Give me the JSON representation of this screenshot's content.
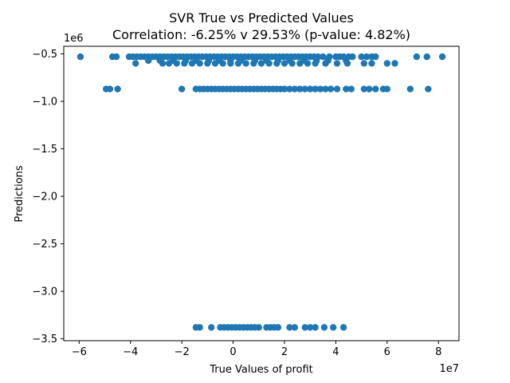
{
  "chart_data": {
    "type": "scatter",
    "title": "SVR True vs Predicted Values",
    "subtitle": "Correlation: -6.25% v 29.53% (p-value: 4.82%)",
    "xlabel": "True Values of profit",
    "ylabel": "Predictions",
    "x_offset_label": "1e7",
    "y_offset_label": "1e6",
    "x_ticks": [
      -6,
      -4,
      -2,
      0,
      2,
      4,
      6,
      8
    ],
    "y_ticks": [
      -0.5,
      -1.0,
      -1.5,
      -2.0,
      -2.5,
      -3.0,
      -3.5
    ],
    "x_tick_labels": [
      "−6",
      "−4",
      "−2",
      "0",
      "2",
      "4",
      "6",
      "8"
    ],
    "y_tick_labels": [
      "−0.5",
      "−1.0",
      "−1.5",
      "−2.0",
      "−2.5",
      "−3.0",
      "−3.5"
    ],
    "xlim": [
      -6.6,
      8.8
    ],
    "ylim": [
      -3.52,
      -0.42
    ],
    "grid": false,
    "marker_color": "#1f77b4",
    "series": [
      {
        "points": [
          [
            -5.95,
            -0.53
          ],
          [
            -4.7,
            -0.53
          ],
          [
            -4.55,
            -0.53
          ],
          [
            -4.05,
            -0.53
          ],
          [
            -3.9,
            -0.53
          ],
          [
            -3.75,
            -0.53
          ],
          [
            -3.6,
            -0.53
          ],
          [
            -3.45,
            -0.53
          ],
          [
            -3.3,
            -0.53
          ],
          [
            -3.15,
            -0.53
          ],
          [
            -3.0,
            -0.53
          ],
          [
            -2.85,
            -0.53
          ],
          [
            -2.7,
            -0.53
          ],
          [
            -2.55,
            -0.53
          ],
          [
            -2.4,
            -0.53
          ],
          [
            -2.25,
            -0.53
          ],
          [
            -2.1,
            -0.53
          ],
          [
            -1.95,
            -0.53
          ],
          [
            -1.8,
            -0.53
          ],
          [
            -1.65,
            -0.53
          ],
          [
            -1.5,
            -0.53
          ],
          [
            -1.35,
            -0.53
          ],
          [
            -1.2,
            -0.53
          ],
          [
            -1.05,
            -0.53
          ],
          [
            -0.9,
            -0.53
          ],
          [
            -0.75,
            -0.53
          ],
          [
            -0.6,
            -0.53
          ],
          [
            -0.45,
            -0.53
          ],
          [
            -0.3,
            -0.53
          ],
          [
            -0.15,
            -0.53
          ],
          [
            0.0,
            -0.53
          ],
          [
            0.15,
            -0.53
          ],
          [
            0.3,
            -0.53
          ],
          [
            0.45,
            -0.53
          ],
          [
            0.6,
            -0.53
          ],
          [
            0.75,
            -0.53
          ],
          [
            0.9,
            -0.53
          ],
          [
            1.05,
            -0.53
          ],
          [
            1.2,
            -0.53
          ],
          [
            1.35,
            -0.53
          ],
          [
            1.5,
            -0.53
          ],
          [
            1.65,
            -0.53
          ],
          [
            1.8,
            -0.53
          ],
          [
            1.95,
            -0.53
          ],
          [
            2.1,
            -0.53
          ],
          [
            2.25,
            -0.53
          ],
          [
            2.4,
            -0.53
          ],
          [
            2.55,
            -0.53
          ],
          [
            2.7,
            -0.53
          ],
          [
            2.85,
            -0.53
          ],
          [
            3.0,
            -0.53
          ],
          [
            3.15,
            -0.53
          ],
          [
            3.3,
            -0.53
          ],
          [
            3.5,
            -0.53
          ],
          [
            3.75,
            -0.53
          ],
          [
            4.0,
            -0.53
          ],
          [
            4.15,
            -0.53
          ],
          [
            4.3,
            -0.53
          ],
          [
            4.5,
            -0.53
          ],
          [
            4.65,
            -0.53
          ],
          [
            5.0,
            -0.53
          ],
          [
            5.2,
            -0.53
          ],
          [
            5.4,
            -0.53
          ],
          [
            5.55,
            -0.53
          ],
          [
            7.15,
            -0.53
          ],
          [
            7.55,
            -0.53
          ],
          [
            8.15,
            -0.53
          ],
          [
            -3.3,
            -0.57
          ],
          [
            -2.85,
            -0.57
          ],
          [
            -2.35,
            -0.57
          ],
          [
            -1.85,
            -0.57
          ],
          [
            -1.45,
            -0.57
          ],
          [
            -0.95,
            -0.57
          ],
          [
            -0.55,
            -0.57
          ],
          [
            -0.1,
            -0.57
          ],
          [
            0.3,
            -0.57
          ],
          [
            0.85,
            -0.57
          ],
          [
            1.3,
            -0.57
          ],
          [
            1.75,
            -0.57
          ],
          [
            2.2,
            -0.57
          ],
          [
            2.75,
            -0.57
          ],
          [
            3.25,
            -0.57
          ],
          [
            3.7,
            -0.57
          ],
          [
            4.4,
            -0.57
          ],
          [
            -3.8,
            -0.6
          ],
          [
            -2.75,
            -0.6
          ],
          [
            -2.5,
            -0.6
          ],
          [
            -2.2,
            -0.6
          ],
          [
            -1.9,
            -0.6
          ],
          [
            -1.6,
            -0.6
          ],
          [
            -1.3,
            -0.6
          ],
          [
            -1.0,
            -0.6
          ],
          [
            -0.7,
            -0.6
          ],
          [
            -0.4,
            -0.6
          ],
          [
            -0.1,
            -0.6
          ],
          [
            0.2,
            -0.6
          ],
          [
            0.5,
            -0.6
          ],
          [
            0.8,
            -0.6
          ],
          [
            1.1,
            -0.6
          ],
          [
            1.4,
            -0.6
          ],
          [
            1.7,
            -0.6
          ],
          [
            2.0,
            -0.6
          ],
          [
            2.3,
            -0.6
          ],
          [
            2.6,
            -0.6
          ],
          [
            2.9,
            -0.6
          ],
          [
            3.2,
            -0.6
          ],
          [
            3.6,
            -0.6
          ],
          [
            4.05,
            -0.6
          ],
          [
            4.45,
            -0.6
          ],
          [
            5.1,
            -0.6
          ],
          [
            5.4,
            -0.6
          ],
          [
            6.0,
            -0.6
          ],
          [
            6.3,
            -0.6
          ],
          [
            -4.95,
            -0.87
          ],
          [
            -4.8,
            -0.87
          ],
          [
            -4.5,
            -0.87
          ],
          [
            -2.0,
            -0.87
          ],
          [
            -1.45,
            -0.87
          ],
          [
            -1.3,
            -0.87
          ],
          [
            -1.15,
            -0.87
          ],
          [
            -1.0,
            -0.87
          ],
          [
            -0.85,
            -0.87
          ],
          [
            -0.7,
            -0.87
          ],
          [
            -0.55,
            -0.87
          ],
          [
            -0.4,
            -0.87
          ],
          [
            -0.25,
            -0.87
          ],
          [
            -0.1,
            -0.87
          ],
          [
            0.05,
            -0.87
          ],
          [
            0.2,
            -0.87
          ],
          [
            0.35,
            -0.87
          ],
          [
            0.5,
            -0.87
          ],
          [
            0.65,
            -0.87
          ],
          [
            0.8,
            -0.87
          ],
          [
            0.95,
            -0.87
          ],
          [
            1.1,
            -0.87
          ],
          [
            1.25,
            -0.87
          ],
          [
            1.4,
            -0.87
          ],
          [
            1.55,
            -0.87
          ],
          [
            1.7,
            -0.87
          ],
          [
            1.85,
            -0.87
          ],
          [
            2.0,
            -0.87
          ],
          [
            2.2,
            -0.87
          ],
          [
            2.4,
            -0.87
          ],
          [
            2.6,
            -0.87
          ],
          [
            2.8,
            -0.87
          ],
          [
            3.0,
            -0.87
          ],
          [
            3.2,
            -0.87
          ],
          [
            3.4,
            -0.87
          ],
          [
            3.6,
            -0.87
          ],
          [
            3.8,
            -0.87
          ],
          [
            4.05,
            -0.87
          ],
          [
            4.4,
            -0.87
          ],
          [
            4.6,
            -0.87
          ],
          [
            5.1,
            -0.87
          ],
          [
            5.3,
            -0.87
          ],
          [
            5.55,
            -0.87
          ],
          [
            5.85,
            -0.87
          ],
          [
            6.0,
            -0.87
          ],
          [
            6.9,
            -0.87
          ],
          [
            7.6,
            -0.87
          ],
          [
            -1.45,
            -3.38
          ],
          [
            -1.3,
            -3.38
          ],
          [
            -0.85,
            -3.38
          ],
          [
            -0.5,
            -3.38
          ],
          [
            -0.35,
            -3.38
          ],
          [
            -0.2,
            -3.38
          ],
          [
            -0.05,
            -3.38
          ],
          [
            0.1,
            -3.38
          ],
          [
            0.25,
            -3.38
          ],
          [
            0.4,
            -3.38
          ],
          [
            0.55,
            -3.38
          ],
          [
            0.7,
            -3.38
          ],
          [
            0.85,
            -3.38
          ],
          [
            1.0,
            -3.38
          ],
          [
            1.3,
            -3.38
          ],
          [
            1.45,
            -3.38
          ],
          [
            1.6,
            -3.38
          ],
          [
            1.75,
            -3.38
          ],
          [
            2.2,
            -3.38
          ],
          [
            2.4,
            -3.38
          ],
          [
            2.8,
            -3.38
          ],
          [
            3.0,
            -3.38
          ],
          [
            3.2,
            -3.38
          ],
          [
            3.55,
            -3.38
          ],
          [
            3.9,
            -3.38
          ],
          [
            4.3,
            -3.38
          ]
        ]
      }
    ]
  }
}
